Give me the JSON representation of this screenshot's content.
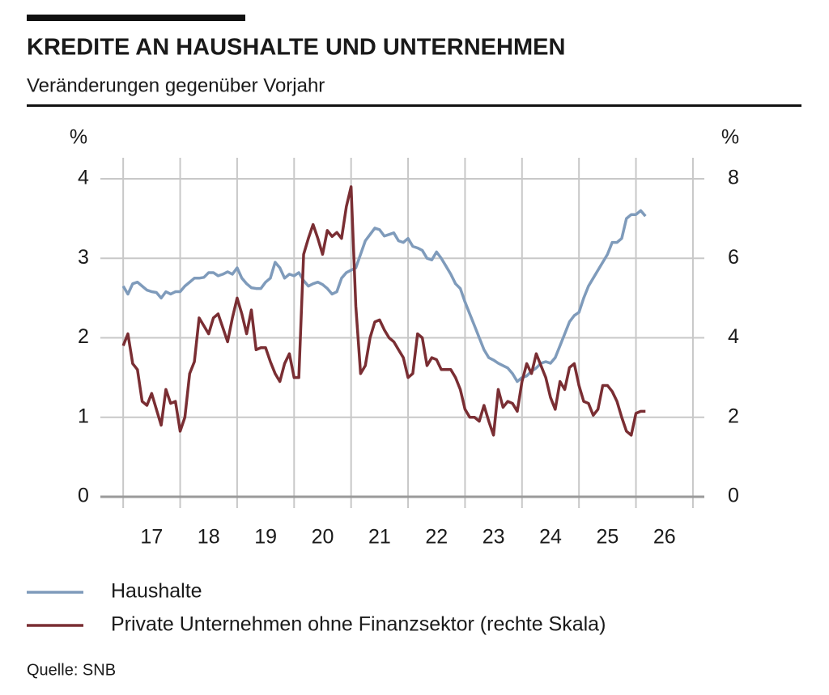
{
  "chart_data": {
    "type": "line",
    "title": "KREDITE AN HAUSHALTE UND UNTERNEHMEN",
    "subtitle": "Veränderungen gegenüber Vorjahr",
    "y_unit": "%",
    "y2_unit": "%",
    "source": "Quelle: SNB",
    "xlim": [
      2016.6,
      2027.2
    ],
    "xticks": [
      {
        "value": 2017.5,
        "label": "17"
      },
      {
        "value": 2018.5,
        "label": "18"
      },
      {
        "value": 2019.5,
        "label": "19"
      },
      {
        "value": 2020.5,
        "label": "20"
      },
      {
        "value": 2021.5,
        "label": "21"
      },
      {
        "value": 2022.5,
        "label": "22"
      },
      {
        "value": 2023.5,
        "label": "23"
      },
      {
        "value": 2024.5,
        "label": "24"
      },
      {
        "value": 2025.5,
        "label": "25"
      },
      {
        "value": 2026.5,
        "label": "26"
      }
    ],
    "ylim": [
      0,
      4
    ],
    "yticks": [
      0,
      1,
      2,
      3,
      4
    ],
    "y2lim": [
      0,
      8
    ],
    "y2ticks": [
      0,
      2,
      4,
      6,
      8
    ],
    "grid": true,
    "x": [
      2017.0,
      2017.083,
      2017.167,
      2017.25,
      2017.333,
      2017.417,
      2017.5,
      2017.583,
      2017.667,
      2017.75,
      2017.833,
      2017.917,
      2018.0,
      2018.083,
      2018.167,
      2018.25,
      2018.333,
      2018.417,
      2018.5,
      2018.583,
      2018.667,
      2018.75,
      2018.833,
      2018.917,
      2019.0,
      2019.083,
      2019.167,
      2019.25,
      2019.333,
      2019.417,
      2019.5,
      2019.583,
      2019.667,
      2019.75,
      2019.833,
      2019.917,
      2020.0,
      2020.083,
      2020.167,
      2020.25,
      2020.333,
      2020.417,
      2020.5,
      2020.583,
      2020.667,
      2020.75,
      2020.833,
      2020.917,
      2021.0,
      2021.083,
      2021.167,
      2021.25,
      2021.333,
      2021.417,
      2021.5,
      2021.583,
      2021.667,
      2021.75,
      2021.833,
      2021.917,
      2022.0,
      2022.083,
      2022.167,
      2022.25,
      2022.333,
      2022.417,
      2022.5,
      2022.583,
      2022.667,
      2022.75,
      2022.833,
      2022.917,
      2023.0,
      2023.083,
      2023.167,
      2023.25,
      2023.333,
      2023.417,
      2023.5,
      2023.583,
      2023.667,
      2023.75,
      2023.833,
      2023.917,
      2024.0,
      2024.083,
      2024.167,
      2024.25,
      2024.333,
      2024.417,
      2024.5,
      2024.583,
      2024.667,
      2024.75,
      2024.833,
      2024.917,
      2025.0,
      2025.083,
      2025.167,
      2025.25,
      2025.333,
      2025.417,
      2025.5,
      2025.583,
      2025.667,
      2025.75,
      2025.833,
      2025.917,
      2026.0,
      2026.083,
      2026.167
    ],
    "series": [
      {
        "name": "Haushalte",
        "color": "#7f9bbb",
        "axis": "y",
        "values": [
          2.65,
          2.55,
          2.68,
          2.7,
          2.65,
          2.6,
          2.58,
          2.57,
          2.5,
          2.58,
          2.55,
          2.58,
          2.58,
          2.65,
          2.7,
          2.75,
          2.75,
          2.76,
          2.82,
          2.82,
          2.78,
          2.8,
          2.83,
          2.8,
          2.88,
          2.75,
          2.68,
          2.63,
          2.62,
          2.62,
          2.7,
          2.75,
          2.95,
          2.88,
          2.75,
          2.8,
          2.78,
          2.82,
          2.72,
          2.65,
          2.68,
          2.7,
          2.67,
          2.62,
          2.55,
          2.58,
          2.75,
          2.82,
          2.85,
          2.88,
          3.05,
          3.22,
          3.3,
          3.38,
          3.36,
          3.28,
          3.3,
          3.32,
          3.22,
          3.2,
          3.25,
          3.15,
          3.13,
          3.1,
          3.0,
          2.98,
          3.08,
          3.0,
          2.9,
          2.8,
          2.68,
          2.62,
          2.45,
          2.3,
          2.15,
          2.0,
          1.85,
          1.75,
          1.72,
          1.68,
          1.65,
          1.62,
          1.55,
          1.45,
          1.5,
          1.52,
          1.58,
          1.62,
          1.68,
          1.7,
          1.68,
          1.75,
          1.9,
          2.05,
          2.2,
          2.28,
          2.32,
          2.5,
          2.65,
          2.75,
          2.85,
          2.95,
          3.05,
          3.2,
          3.2,
          3.25,
          3.5,
          3.55,
          3.55,
          3.6,
          3.53
        ]
      },
      {
        "name": "Private Unternehmen ohne Finanzsektor (rechte Skala)",
        "color": "#7a2e33",
        "axis": "y2",
        "values": [
          3.8,
          4.1,
          3.35,
          3.2,
          2.4,
          2.3,
          2.6,
          2.2,
          1.8,
          2.7,
          2.35,
          2.4,
          1.65,
          2.0,
          3.1,
          3.4,
          4.5,
          4.3,
          4.1,
          4.5,
          4.6,
          4.25,
          3.9,
          4.5,
          5.0,
          4.6,
          4.1,
          4.7,
          3.7,
          3.75,
          3.75,
          3.4,
          3.1,
          2.9,
          3.35,
          3.6,
          3.0,
          3.0,
          6.1,
          6.5,
          6.85,
          6.5,
          6.1,
          6.7,
          6.55,
          6.65,
          6.5,
          7.3,
          7.8,
          4.8,
          3.1,
          3.3,
          4.0,
          4.4,
          4.45,
          4.2,
          4.0,
          3.9,
          3.7,
          3.5,
          3.0,
          3.1,
          4.1,
          4.0,
          3.3,
          3.5,
          3.45,
          3.2,
          3.2,
          3.2,
          3.0,
          2.7,
          2.2,
          2.0,
          2.0,
          1.9,
          2.3,
          1.9,
          1.55,
          2.7,
          2.25,
          2.4,
          2.35,
          2.15,
          2.9,
          3.35,
          3.1,
          3.6,
          3.3,
          3.0,
          2.5,
          2.2,
          2.9,
          2.7,
          3.25,
          3.35,
          2.8,
          2.4,
          2.35,
          2.05,
          2.2,
          2.8,
          2.8,
          2.65,
          2.4,
          2.0,
          1.65,
          1.55,
          2.1,
          2.15,
          2.15
        ]
      }
    ]
  }
}
